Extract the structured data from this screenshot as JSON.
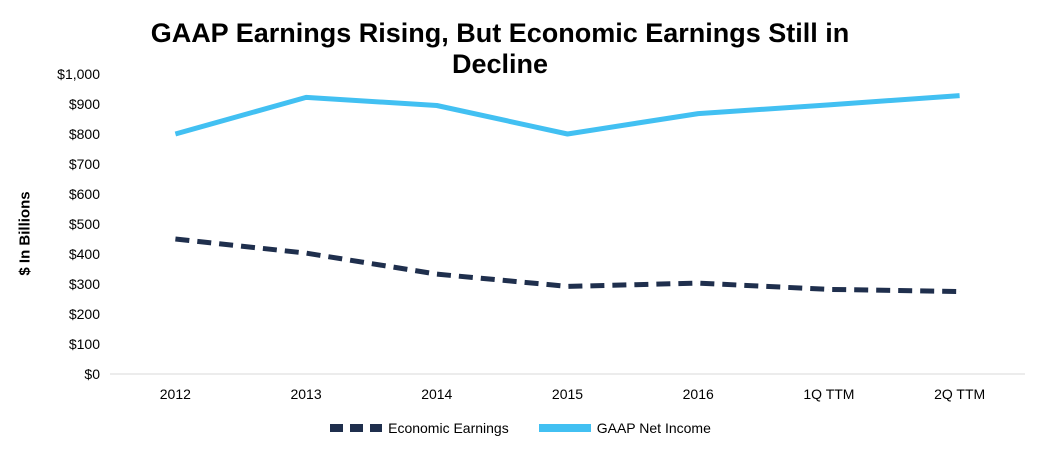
{
  "chart_data": {
    "type": "line",
    "title": "GAAP Earnings Rising, But Economic Earnings Still in Decline",
    "ylabel": "$ In Billions",
    "xlabel": "",
    "categories": [
      "2012",
      "2013",
      "2014",
      "2015",
      "2016",
      "1Q TTM",
      "2Q TTM"
    ],
    "ylim": [
      0,
      1000
    ],
    "yticks": [
      "$0",
      "$100",
      "$200",
      "$300",
      "$400",
      "$500",
      "$600",
      "$700",
      "$800",
      "$900",
      "$1,000"
    ],
    "grid": false,
    "legend_position": "bottom",
    "series": [
      {
        "name": "Economic Earnings",
        "values": [
          450,
          403,
          333,
          292,
          303,
          282,
          275
        ],
        "color": "#1f2f4d",
        "style": "dashed"
      },
      {
        "name": "GAAP Net Income",
        "values": [
          800,
          922,
          895,
          800,
          868,
          897,
          928
        ],
        "color": "#42c0f2",
        "style": "solid"
      }
    ]
  }
}
